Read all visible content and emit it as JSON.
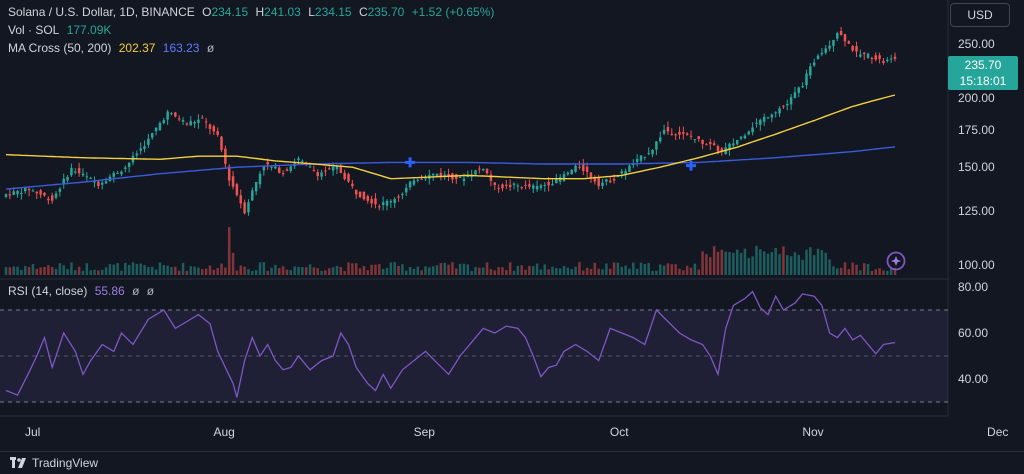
{
  "header": {
    "symbol": "Solana / U.S. Dollar, 1D, BINANCE",
    "o_label": "O",
    "o_value": "234.15",
    "h_label": "H",
    "h_value": "241.03",
    "l_label": "L",
    "l_value": "234.15",
    "c_label": "C",
    "c_value": "235.70",
    "change": "+1.52 (+0.65%)"
  },
  "indicators": {
    "vol_label": "Vol · SOL",
    "vol_value": "177.09K",
    "ma_label": "MA Cross (50, 200)",
    "ma_fast": "202.37",
    "ma_slow": "163.23",
    "rsi_label": "RSI (14, close)",
    "rsi_value": "55.86",
    "eye_symbol": "ø"
  },
  "currency_button": "USD",
  "last_price": {
    "price": "235.70",
    "countdown": "15:18:01"
  },
  "footer": {
    "brand": "TradingView"
  },
  "colors": {
    "up": "#26a69a",
    "down": "#ef5350",
    "ma_fast": "#f4d03f",
    "ma_slow": "#3b5bdb",
    "rsi": "#7e57c2",
    "background": "#131722"
  },
  "chart_data": [
    {
      "type": "candlestick",
      "title": "Solana / U.S. Dollar, 1D, BINANCE",
      "x_tick_labels": [
        "Jul",
        "Aug",
        "Sep",
        "Oct",
        "Nov",
        "Dec"
      ],
      "y_tick_labels": [
        "100.00",
        "125.00",
        "150.00",
        "175.00",
        "200.00",
        "250.00"
      ],
      "ylim": [
        95,
        270
      ],
      "scale": "log",
      "close_path": [
        [
          0,
          134
        ],
        [
          6,
          137
        ],
        [
          12,
          131
        ],
        [
          17,
          149
        ],
        [
          24,
          140
        ],
        [
          31,
          150
        ],
        [
          37,
          168
        ],
        [
          42,
          188
        ],
        [
          47,
          180
        ],
        [
          51,
          183
        ],
        [
          55,
          170
        ],
        [
          58,
          143
        ],
        [
          62,
          125
        ],
        [
          67,
          152
        ],
        [
          72,
          147
        ],
        [
          76,
          155
        ],
        [
          81,
          146
        ],
        [
          86,
          150
        ],
        [
          91,
          135
        ],
        [
          97,
          128
        ],
        [
          103,
          134
        ],
        [
          106,
          143
        ],
        [
          112,
          146
        ],
        [
          118,
          143
        ],
        [
          124,
          150
        ],
        [
          127,
          138
        ],
        [
          132,
          139
        ],
        [
          138,
          138
        ],
        [
          143,
          142
        ],
        [
          149,
          151
        ],
        [
          154,
          140
        ],
        [
          158,
          143
        ],
        [
          163,
          152
        ],
        [
          168,
          162
        ],
        [
          171,
          175
        ],
        [
          178,
          170
        ],
        [
          183,
          164
        ],
        [
          186,
          160
        ],
        [
          191,
          170
        ],
        [
          194,
          178
        ],
        [
          199,
          188
        ],
        [
          203,
          195
        ],
        [
          207,
          212
        ],
        [
          211,
          240
        ],
        [
          214,
          250
        ],
        [
          216,
          263
        ],
        [
          218,
          255
        ],
        [
          221,
          240
        ],
        [
          225,
          238
        ],
        [
          228,
          232
        ],
        [
          231,
          235.7
        ]
      ],
      "ma_fast": [
        [
          0,
          158
        ],
        [
          20,
          156
        ],
        [
          40,
          155
        ],
        [
          50,
          157
        ],
        [
          60,
          157
        ],
        [
          70,
          154
        ],
        [
          80,
          152
        ],
        [
          90,
          150
        ],
        [
          100,
          143
        ],
        [
          110,
          144
        ],
        [
          120,
          145
        ],
        [
          130,
          144
        ],
        [
          140,
          143
        ],
        [
          150,
          143
        ],
        [
          160,
          145
        ],
        [
          170,
          150
        ],
        [
          180,
          156
        ],
        [
          190,
          163
        ],
        [
          200,
          172
        ],
        [
          210,
          182
        ],
        [
          220,
          193
        ],
        [
          231,
          202.37
        ]
      ],
      "ma_slow": [
        [
          0,
          137
        ],
        [
          20,
          141
        ],
        [
          40,
          146
        ],
        [
          60,
          150
        ],
        [
          80,
          152
        ],
        [
          100,
          153
        ],
        [
          120,
          153
        ],
        [
          140,
          152
        ],
        [
          160,
          152
        ],
        [
          180,
          153
        ],
        [
          200,
          156
        ],
        [
          220,
          160
        ],
        [
          231,
          163.23
        ]
      ],
      "cross_markers": [
        {
          "index": 105,
          "price": 153
        },
        {
          "index": 178,
          "price": 151
        }
      ]
    },
    {
      "type": "bar",
      "title": "Vol · SOL",
      "last_value": "177.09K"
    },
    {
      "type": "line",
      "title": "RSI (14, close)",
      "y_tick_labels": [
        "40.00",
        "60.00",
        "80.00"
      ],
      "ylim": [
        27,
        84
      ],
      "band": [
        30,
        70
      ],
      "midline": 50,
      "last_value": 55.86,
      "path": [
        [
          0,
          35
        ],
        [
          3,
          33
        ],
        [
          6,
          43
        ],
        [
          8,
          50
        ],
        [
          10,
          58
        ],
        [
          12,
          45
        ],
        [
          15,
          60
        ],
        [
          18,
          52
        ],
        [
          20,
          42
        ],
        [
          22,
          48
        ],
        [
          25,
          55
        ],
        [
          28,
          52
        ],
        [
          30,
          60
        ],
        [
          33,
          55
        ],
        [
          37,
          66
        ],
        [
          41,
          70
        ],
        [
          44,
          62
        ],
        [
          47,
          65
        ],
        [
          50,
          68
        ],
        [
          53,
          64
        ],
        [
          55,
          52
        ],
        [
          57,
          45
        ],
        [
          59,
          38
        ],
        [
          60,
          32
        ],
        [
          62,
          48
        ],
        [
          64,
          58
        ],
        [
          66,
          50
        ],
        [
          68,
          55
        ],
        [
          70,
          48
        ],
        [
          72,
          44
        ],
        [
          74,
          45
        ],
        [
          76,
          50
        ],
        [
          79,
          44
        ],
        [
          82,
          48
        ],
        [
          85,
          50
        ],
        [
          87,
          60
        ],
        [
          89,
          55
        ],
        [
          91,
          45
        ],
        [
          94,
          38
        ],
        [
          96,
          35
        ],
        [
          98,
          42
        ],
        [
          100,
          36
        ],
        [
          103,
          44
        ],
        [
          106,
          48
        ],
        [
          109,
          52
        ],
        [
          112,
          47
        ],
        [
          115,
          42
        ],
        [
          118,
          50
        ],
        [
          121,
          56
        ],
        [
          124,
          62
        ],
        [
          127,
          60
        ],
        [
          130,
          63
        ],
        [
          133,
          62
        ],
        [
          135,
          58
        ],
        [
          137,
          50
        ],
        [
          139,
          41
        ],
        [
          141,
          45
        ],
        [
          143,
          46
        ],
        [
          145,
          52
        ],
        [
          148,
          55
        ],
        [
          151,
          52
        ],
        [
          154,
          48
        ],
        [
          157,
          62
        ],
        [
          160,
          60
        ],
        [
          163,
          58
        ],
        [
          166,
          55
        ],
        [
          169,
          70
        ],
        [
          172,
          65
        ],
        [
          175,
          60
        ],
        [
          178,
          57
        ],
        [
          181,
          55
        ],
        [
          183,
          50
        ],
        [
          185,
          42
        ],
        [
          187,
          62
        ],
        [
          189,
          72
        ],
        [
          192,
          75
        ],
        [
          194,
          78
        ],
        [
          196,
          71
        ],
        [
          198,
          68
        ],
        [
          200,
          76
        ],
        [
          202,
          70
        ],
        [
          205,
          73
        ],
        [
          207,
          77
        ],
        [
          210,
          76
        ],
        [
          212,
          72
        ],
        [
          214,
          60
        ],
        [
          216,
          58
        ],
        [
          218,
          62
        ],
        [
          220,
          57
        ],
        [
          222,
          59
        ],
        [
          224,
          55
        ],
        [
          226,
          51
        ],
        [
          228,
          55
        ],
        [
          231,
          55.86
        ]
      ]
    }
  ]
}
